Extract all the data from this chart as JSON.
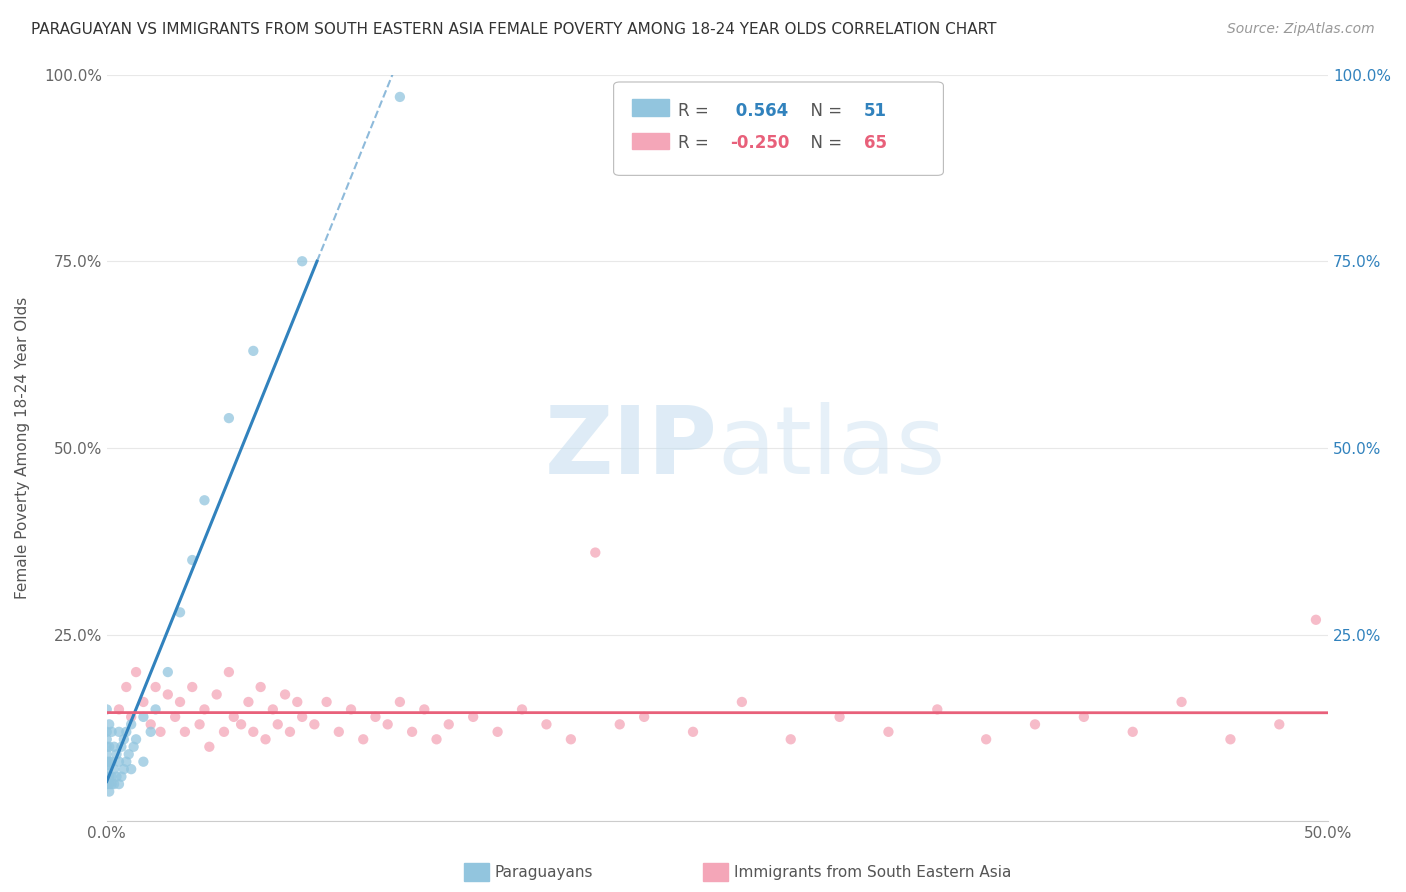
{
  "title": "PARAGUAYAN VS IMMIGRANTS FROM SOUTH EASTERN ASIA FEMALE POVERTY AMONG 18-24 YEAR OLDS CORRELATION CHART",
  "source": "Source: ZipAtlas.com",
  "ylabel": "Female Poverty Among 18-24 Year Olds",
  "xlim": [
    0.0,
    0.5
  ],
  "ylim": [
    0.0,
    1.0
  ],
  "xticks": [
    0.0,
    0.1,
    0.2,
    0.3,
    0.4,
    0.5
  ],
  "yticks": [
    0.0,
    0.25,
    0.5,
    0.75,
    1.0
  ],
  "ytick_labels_left": [
    "",
    "25.0%",
    "50.0%",
    "75.0%",
    "100.0%"
  ],
  "ytick_labels_right": [
    "",
    "25.0%",
    "50.0%",
    "75.0%",
    "100.0%"
  ],
  "xtick_labels": [
    "0.0%",
    "",
    "",
    "",
    "",
    "50.0%"
  ],
  "blue_color": "#92c5de",
  "pink_color": "#f4a6b8",
  "blue_line_color": "#3182bd",
  "pink_line_color": "#e8607a",
  "watermark_zip": "ZIP",
  "watermark_atlas": "atlas",
  "legend_r1_label": "R = ",
  "legend_r1_val": " 0.564",
  "legend_r1_n": "N = ",
  "legend_r1_nval": "51",
  "legend_r2_label": "R = ",
  "legend_r2_val": "-0.250",
  "legend_r2_n": "N = ",
  "legend_r2_nval": "65",
  "par_x": [
    0.0,
    0.0,
    0.0,
    0.0,
    0.0,
    0.0,
    0.0,
    0.0,
    0.0,
    0.0,
    0.001,
    0.001,
    0.001,
    0.001,
    0.001,
    0.001,
    0.002,
    0.002,
    0.002,
    0.002,
    0.003,
    0.003,
    0.003,
    0.004,
    0.004,
    0.005,
    0.005,
    0.005,
    0.006,
    0.006,
    0.007,
    0.007,
    0.008,
    0.008,
    0.009,
    0.01,
    0.01,
    0.011,
    0.012,
    0.015,
    0.015,
    0.018,
    0.02,
    0.025,
    0.03,
    0.035,
    0.04,
    0.05,
    0.06,
    0.08,
    0.12
  ],
  "par_y": [
    0.05,
    0.06,
    0.07,
    0.075,
    0.08,
    0.09,
    0.1,
    0.11,
    0.12,
    0.15,
    0.04,
    0.05,
    0.06,
    0.08,
    0.1,
    0.13,
    0.05,
    0.06,
    0.08,
    0.12,
    0.05,
    0.07,
    0.1,
    0.06,
    0.09,
    0.05,
    0.08,
    0.12,
    0.06,
    0.1,
    0.07,
    0.11,
    0.08,
    0.12,
    0.09,
    0.07,
    0.13,
    0.1,
    0.11,
    0.08,
    0.14,
    0.12,
    0.15,
    0.2,
    0.28,
    0.35,
    0.43,
    0.54,
    0.63,
    0.75,
    0.97
  ],
  "sea_x": [
    0.005,
    0.008,
    0.01,
    0.012,
    0.015,
    0.018,
    0.02,
    0.022,
    0.025,
    0.028,
    0.03,
    0.032,
    0.035,
    0.038,
    0.04,
    0.042,
    0.045,
    0.048,
    0.05,
    0.052,
    0.055,
    0.058,
    0.06,
    0.063,
    0.065,
    0.068,
    0.07,
    0.073,
    0.075,
    0.078,
    0.08,
    0.085,
    0.09,
    0.095,
    0.1,
    0.105,
    0.11,
    0.115,
    0.12,
    0.125,
    0.13,
    0.135,
    0.14,
    0.15,
    0.16,
    0.17,
    0.18,
    0.19,
    0.2,
    0.21,
    0.22,
    0.24,
    0.26,
    0.28,
    0.3,
    0.32,
    0.34,
    0.36,
    0.38,
    0.4,
    0.42,
    0.44,
    0.46,
    0.48,
    0.495
  ],
  "sea_y": [
    0.15,
    0.18,
    0.14,
    0.2,
    0.16,
    0.13,
    0.18,
    0.12,
    0.17,
    0.14,
    0.16,
    0.12,
    0.18,
    0.13,
    0.15,
    0.1,
    0.17,
    0.12,
    0.2,
    0.14,
    0.13,
    0.16,
    0.12,
    0.18,
    0.11,
    0.15,
    0.13,
    0.17,
    0.12,
    0.16,
    0.14,
    0.13,
    0.16,
    0.12,
    0.15,
    0.11,
    0.14,
    0.13,
    0.16,
    0.12,
    0.15,
    0.11,
    0.13,
    0.14,
    0.12,
    0.15,
    0.13,
    0.11,
    0.36,
    0.13,
    0.14,
    0.12,
    0.16,
    0.11,
    0.14,
    0.12,
    0.15,
    0.11,
    0.13,
    0.14,
    0.12,
    0.16,
    0.11,
    0.13,
    0.27
  ]
}
